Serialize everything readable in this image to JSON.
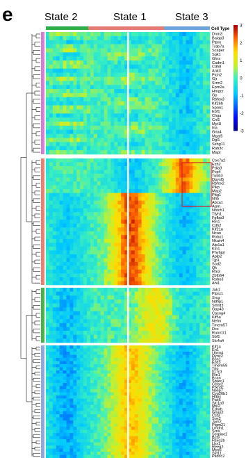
{
  "chart_data": {
    "type": "heatmap",
    "panel_label": "e",
    "column_states": [
      "State 2",
      "State 1",
      "State 3"
    ],
    "row_annotation_header": "Cell Type",
    "state_colors": {
      "State 2": "#2eae4a",
      "State 1": "#e57b73",
      "State 3": "#6fa3dc"
    },
    "colorbar": {
      "ticks": [
        "3",
        "2",
        "1",
        "0",
        "-1",
        "-2",
        "-3"
      ],
      "range": [
        -3,
        3
      ]
    },
    "clusters": [
      {
        "color": "#d47fd6",
        "genes": [
          "Dnm3",
          "Baiap3",
          "Ptpro",
          "Trab7a",
          "Scaper",
          "Sgk1",
          "Ghrs",
          "Cadm1",
          "Cdh8",
          "Ank3",
          "Ptch2",
          "Gjr",
          "Srrm2",
          "Epm2a",
          "Hmgcr",
          "Gp",
          "Rbfox3",
          "Kif26b",
          "Spon1",
          "Ebf1",
          "Chga",
          "Cnl1",
          "Myt1l",
          "Ina",
          "Gria4",
          "Mgat5",
          "Dgl1",
          "Sxhg11",
          "Rab3c",
          "Mapt"
        ]
      },
      {
        "color": "#e8826f",
        "genes": [
          "Cox7a2",
          "Ezh2",
          "Pdia3",
          "Pcp4",
          "Tubb3",
          "Dpysl5",
          "Rbfox2",
          "Plkp",
          "Map2",
          "Pttg1",
          "Nfib",
          "Abca1",
          "Agrn",
          "Notch1",
          "Tfyh1",
          "Fgfbp3",
          "Rin1",
          "Cdh2",
          "Kif21a",
          "Ncan",
          "Robo1",
          "Nkain4",
          "Atp1a1",
          "Ktn1",
          "Phyhipl",
          "Aplp2",
          "Tjp1",
          "Sod2",
          "Qk",
          "Rtn3",
          "Zbtb64",
          "Robo3",
          "Ahi1"
        ]
      },
      {
        "color": "#43b548",
        "genes": [
          "Jak1",
          "Ptprz1",
          "Srcg",
          "Ndfip1",
          "Smrd3",
          "Gap43",
          "Cacng4",
          "Kif5a",
          "Nefm",
          "Tmem57",
          "Dcx",
          "Runx1t1",
          "Sbf1",
          "Slc4a4"
        ]
      },
      {
        "color": "#8fa7e0",
        "genes": [
          "Kif1a",
          "En1",
          "Ubxn4",
          "Dync2",
          "Bsn1",
          "Fzd3",
          "Tmem59",
          "Trio",
          "Il17rd",
          "Rtn1",
          "Bcan",
          "Sparc1",
          "Celsr2",
          "Plxn3c",
          "Nelip7",
          "Cyp26b1",
          "Hdpx",
          "Pax6",
          "Slc1a3",
          "Msi2",
          "Ednrb",
          "Gnas2",
          "Cst3",
          "Sox2",
          "Jam2",
          "Ptgm21",
          "Lmdn1",
          "Srns",
          "Serpine2",
          "Bcl9",
          "Fbxo2b",
          "Lhx1",
          "Reeg2",
          "Myo6",
          "Syt11",
          "Pkdcc2"
        ]
      }
    ],
    "notes": "Row-normalized pseudotime expression heatmap; genes clustered into four modules; red box highlights a subset of module 2 genes."
  }
}
